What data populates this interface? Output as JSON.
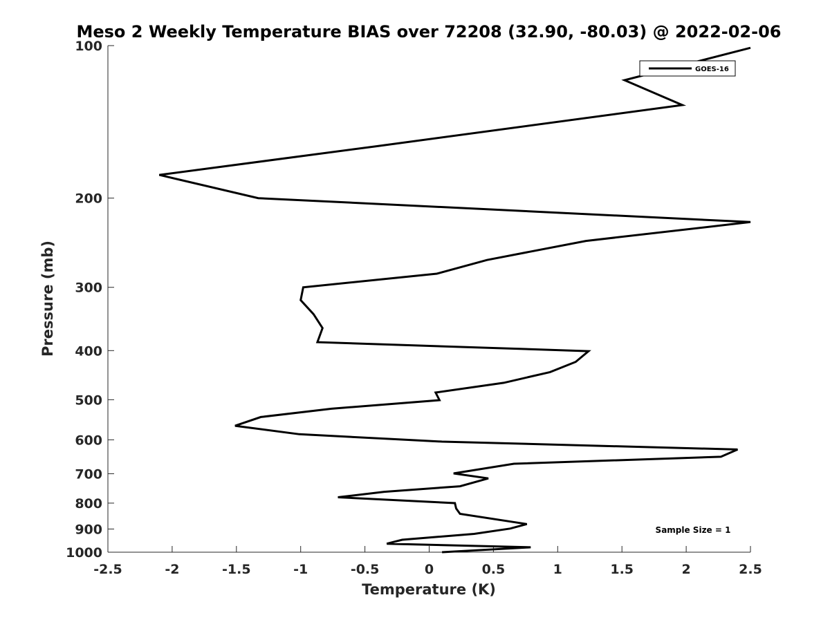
{
  "chart_data": {
    "type": "line",
    "title": "Meso 2 Weekly Temperature BIAS over 72208 (32.90, -80.03) @ 2022-02-06",
    "xlabel": "Temperature (K)",
    "ylabel": "Pressure (mb)",
    "xlim": [
      -2.5,
      2.5
    ],
    "ylim": [
      100,
      1000
    ],
    "yscale": "log",
    "y_reversed": true,
    "x_ticks": [
      "-2.5",
      "-2",
      "-1.5",
      "-1",
      "-0.5",
      "0",
      "0.5",
      "1",
      "1.5",
      "2",
      "2.5"
    ],
    "y_ticks": [
      "100",
      "200",
      "300",
      "400",
      "500",
      "600",
      "700",
      "800",
      "900",
      "1000"
    ],
    "grid": false,
    "legend": {
      "position": "top-right",
      "entries": [
        "GOES-16"
      ]
    },
    "annotation": "Sample Size = 1",
    "series": [
      {
        "name": "GOES-16",
        "color": "#000000",
        "points": [
          [
            2.5,
            101
          ],
          [
            1.52,
            117
          ],
          [
            1.97,
            131
          ],
          [
            -0.41,
            158
          ],
          [
            -2.1,
            180
          ],
          [
            -1.33,
            200
          ],
          [
            2.5,
            223
          ],
          [
            1.22,
            243
          ],
          [
            0.45,
            265
          ],
          [
            0.06,
            282
          ],
          [
            -0.98,
            300
          ],
          [
            -1.0,
            318
          ],
          [
            -0.9,
            339
          ],
          [
            -0.83,
            361
          ],
          [
            -0.87,
            385
          ],
          [
            1.24,
            401
          ],
          [
            1.14,
            421
          ],
          [
            0.94,
            441
          ],
          [
            0.58,
            463
          ],
          [
            0.05,
            484
          ],
          [
            0.08,
            501
          ],
          [
            -0.76,
            521
          ],
          [
            -1.31,
            541
          ],
          [
            -1.51,
            563
          ],
          [
            -1.01,
            585
          ],
          [
            0.1,
            605
          ],
          [
            2.4,
            627
          ],
          [
            2.27,
            648
          ],
          [
            0.66,
            669
          ],
          [
            0.19,
            699
          ],
          [
            0.46,
            715
          ],
          [
            0.24,
            741
          ],
          [
            -0.35,
            760
          ],
          [
            -0.71,
            779
          ],
          [
            0.2,
            800
          ],
          [
            0.21,
            820
          ],
          [
            0.24,
            840
          ],
          [
            0.76,
            880
          ],
          [
            0.63,
            898
          ],
          [
            0.35,
            920
          ],
          [
            -0.21,
            945
          ],
          [
            -0.33,
            962
          ],
          [
            0.79,
            978
          ],
          [
            0.1,
            1000
          ]
        ]
      }
    ]
  }
}
